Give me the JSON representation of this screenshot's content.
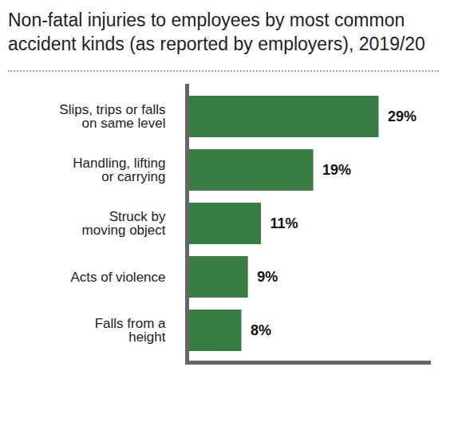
{
  "chart_data": {
    "type": "bar",
    "title": "Non-fatal injuries to employees by most common accident kinds (as reported by employers), 2019/20",
    "orientation": "horizontal",
    "categories": [
      "Slips, trips or falls\non same level",
      "Handling, lifting\nor carrying",
      "Struck by\nmoving object",
      "Acts of violence",
      "Falls from a\nheight"
    ],
    "values": [
      29,
      19,
      11,
      9,
      8
    ],
    "value_labels": [
      "29%",
      "19%",
      "11%",
      "9%",
      "8%"
    ],
    "data_labels": true,
    "color": "#3a7d44",
    "xlim": [
      0,
      37
    ],
    "tick_labels": "y",
    "grid": false
  }
}
